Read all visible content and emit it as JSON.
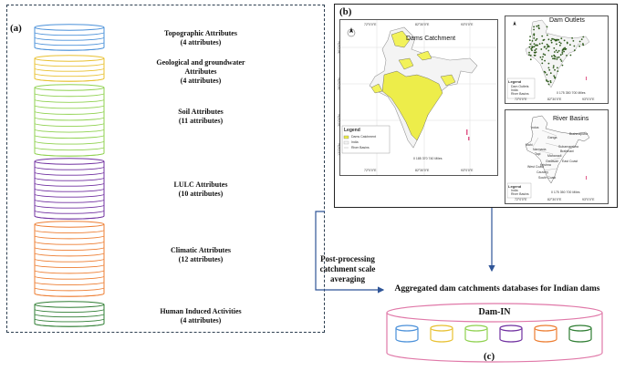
{
  "panel_a": {
    "label": "(a)",
    "groups": [
      {
        "title": "Topographic Attributes",
        "sub": "(4 attributes)",
        "color": "#4a90d9"
      },
      {
        "title": "Geological  and groundwater",
        "title2": "Attributes",
        "sub": "(4 attributes)",
        "color": "#e8c030"
      },
      {
        "title": "Soil Attributes",
        "sub": "(11 attributes)",
        "color": "#8fd14f"
      },
      {
        "title": "LULC Attributes",
        "sub": "(10 attributes)",
        "color": "#7030a0"
      },
      {
        "title": "Climatic Attributes",
        "sub": "(12 attributes)",
        "color": "#ed7d31"
      },
      {
        "title": "Human Induced Activities",
        "sub": "(4 attributes)",
        "color": "#2e7d32"
      }
    ]
  },
  "panel_b": {
    "label": "(b)",
    "main_map": {
      "title": "Dams Catchment",
      "legend_title": "Legend",
      "legend_items": [
        "Dams Catchment",
        "India",
        "River Basins"
      ],
      "scale": "0   185  370        740 Miles",
      "lon_ticks": [
        "72°0'0\"E",
        "82°30'0\"E",
        "93°0'0\"E"
      ],
      "lat_ticks": [
        "36°0'0\"N",
        "28°0'0\"N",
        "20°0'0\"N",
        "12°0'0\"N",
        "4°0'0\"N"
      ]
    },
    "outlets_map": {
      "title": "Dam Outlets",
      "legend_title": "Legend",
      "legend_items": [
        "Dam Outlets",
        "India",
        "River Basins"
      ],
      "scale": "0  175  350    700 Miles",
      "lon_ticks": [
        "72°0'0\"E",
        "82°30'0\"E",
        "93°0'0\"E"
      ]
    },
    "basins_map": {
      "title": "River Basins",
      "basin_names": [
        "Indus",
        "Ganga",
        "Brahmaputra",
        "Mahi",
        "Narmada",
        "Tapi",
        "Subarnarekha",
        "Brahmani",
        "Mahanadi",
        "Godavari",
        "West Coast",
        "Krishna",
        "East Coast",
        "Cauvery",
        "South Coast"
      ],
      "legend_title": "Legend",
      "legend_items": [
        "India",
        "River Basins"
      ],
      "scale": "0  175  350    700 Miles",
      "lon_ticks": [
        "72°0'0\"E",
        "82°30'0\"E",
        "93°0'0\"E"
      ]
    }
  },
  "flow": {
    "post_processing": [
      "Post-processing",
      "catchment scale",
      "averaging"
    ]
  },
  "panel_c": {
    "heading": "Aggregated dam catchments databases for Indian dams",
    "db_name": "Dam-IN",
    "label": "(c)",
    "mini_colors": [
      "#4a90d9",
      "#e8c030",
      "#8fd14f",
      "#7030a0",
      "#ed7d31",
      "#2e7d32"
    ]
  }
}
